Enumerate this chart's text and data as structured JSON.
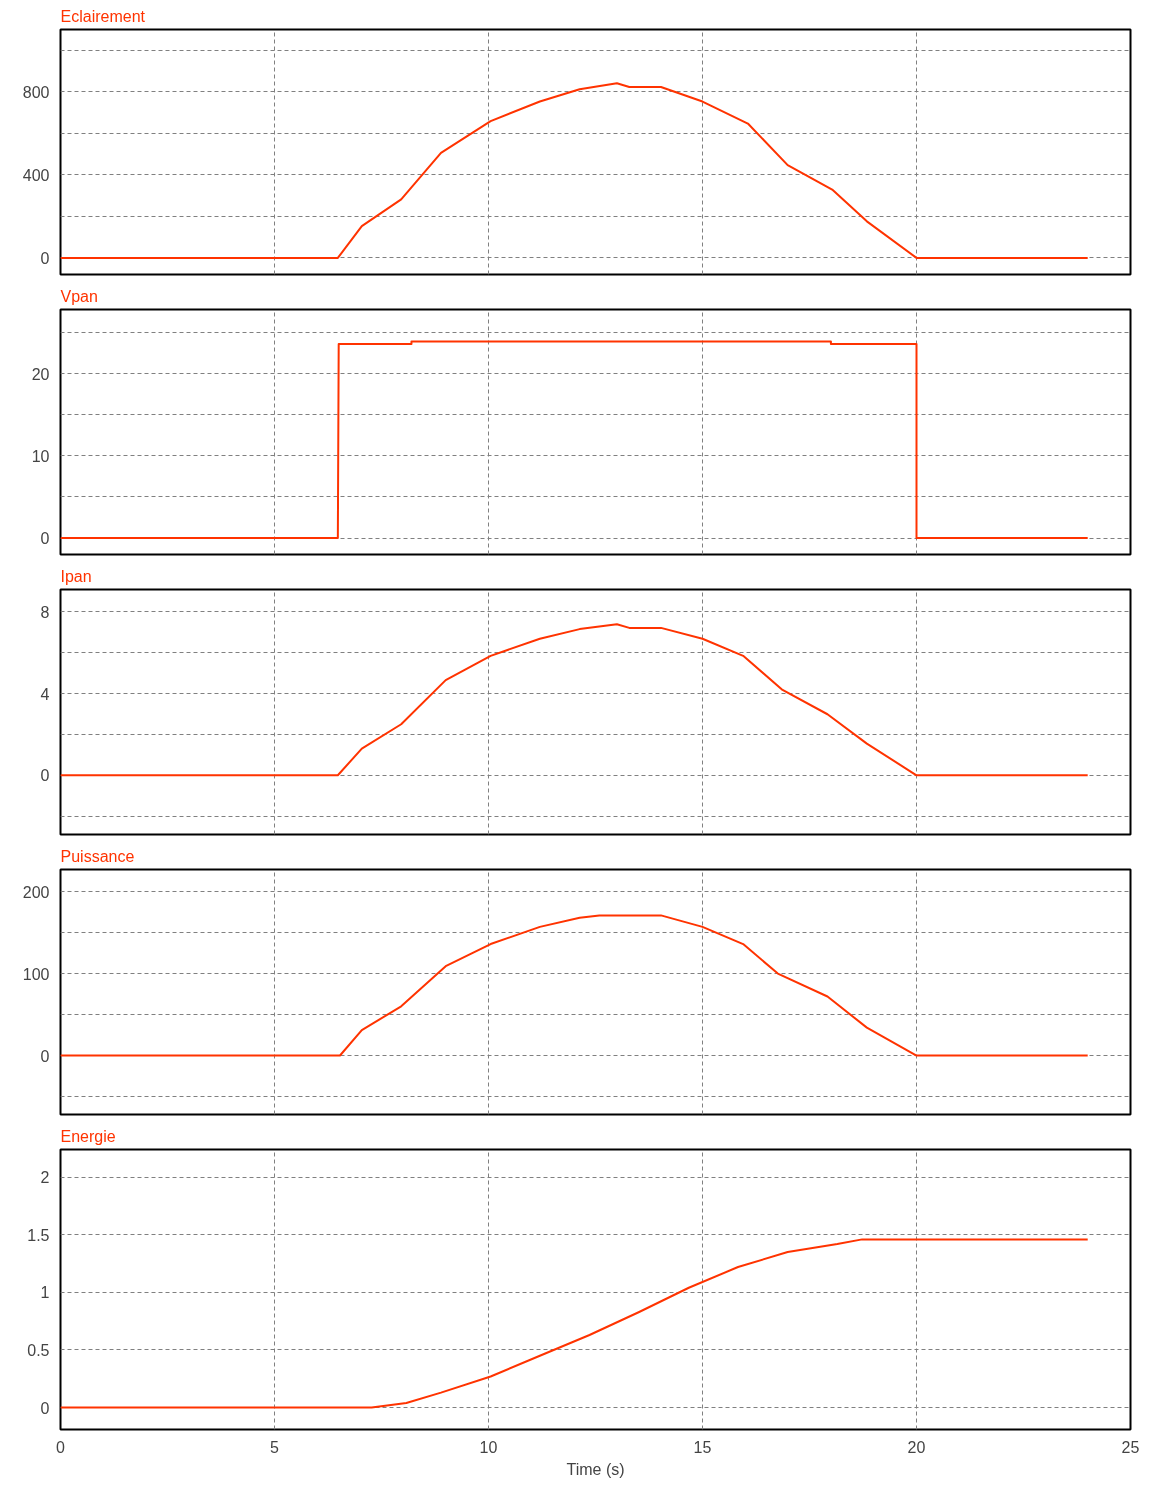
{
  "chart_data": [
    {
      "type": "line",
      "title": "Eclairement",
      "xlim": [
        0,
        25
      ],
      "xticks": [
        0,
        5,
        10,
        15,
        20,
        25
      ],
      "ylim": [
        -80,
        1100
      ],
      "yticks": [
        0,
        {
          "value": 200,
          "label": null
        },
        400,
        {
          "value": 600,
          "label": null
        },
        800,
        {
          "value": 1000,
          "label": null
        }
      ],
      "tick_labels": "y",
      "grid": true,
      "series": [
        {
          "color": "#ff3300",
          "x": [
            0,
            6.48,
            7.04,
            7.96,
            8.89,
            10.05,
            11.2,
            12.13,
            13.0,
            13.29,
            14.03,
            15.0,
            16.06,
            16.99,
            18.03,
            18.84,
            20.0,
            24
          ],
          "values": [
            0,
            0,
            153,
            282,
            506,
            659,
            753,
            812,
            841,
            823,
            823,
            753,
            647,
            447,
            329,
            176,
            0,
            0
          ]
        }
      ]
    },
    {
      "type": "line",
      "title": "Vpan",
      "xlim": [
        0,
        25
      ],
      "xticks": [
        0,
        5,
        10,
        15,
        20,
        25
      ],
      "ylim": [
        -2,
        27.8
      ],
      "yticks": [
        0,
        {
          "value": 5,
          "label": null
        },
        10,
        {
          "value": 15,
          "label": null
        },
        20,
        {
          "value": 25,
          "label": null
        }
      ],
      "tick_labels": "y",
      "grid": true,
      "series": [
        {
          "color": "#ff3300",
          "x": [
            0,
            6.48,
            6.5,
            8.2,
            8.2,
            18.0,
            18.0,
            20,
            20,
            24
          ],
          "values": [
            0,
            0,
            23.6,
            23.6,
            23.9,
            23.9,
            23.6,
            23.6,
            0,
            0
          ]
        }
      ]
    },
    {
      "type": "line",
      "title": "Ipan",
      "xlim": [
        0,
        25
      ],
      "xticks": [
        0,
        5,
        10,
        15,
        20,
        25
      ],
      "ylim": [
        -2.9,
        9.1
      ],
      "yticks": [
        {
          "value": -2,
          "label": null
        },
        0,
        {
          "value": 2,
          "label": null
        },
        4,
        {
          "value": 6,
          "label": null
        },
        8
      ],
      "tick_labels": "y",
      "grid": true,
      "series": [
        {
          "color": "#ff3300",
          "x": [
            0,
            6.48,
            7.04,
            7.96,
            9.0,
            10.05,
            11.2,
            12.13,
            13.0,
            13.29,
            14.03,
            15.0,
            15.95,
            16.87,
            17.92,
            18.84,
            20,
            24
          ],
          "values": [
            0,
            0,
            1.31,
            2.5,
            4.66,
            5.85,
            6.69,
            7.16,
            7.4,
            7.22,
            7.22,
            6.69,
            5.85,
            4.18,
            2.99,
            1.55,
            0,
            0
          ]
        }
      ]
    },
    {
      "type": "line",
      "title": "Puissance",
      "xlim": [
        0,
        25
      ],
      "xticks": [
        0,
        5,
        10,
        15,
        20,
        25
      ],
      "ylim": [
        -72,
        227
      ],
      "yticks": [
        {
          "value": -50,
          "label": null
        },
        0,
        {
          "value": 50,
          "label": null
        },
        100,
        {
          "value": 150,
          "label": null
        },
        200
      ],
      "tick_labels": "y",
      "grid": true,
      "series": [
        {
          "color": "#ff3300",
          "x": [
            0,
            6.53,
            7.04,
            7.96,
            9.0,
            10.05,
            11.2,
            12.13,
            12.59,
            14.03,
            15.0,
            15.95,
            16.76,
            17.92,
            18.84,
            20,
            24
          ],
          "values": [
            0,
            0,
            31,
            60,
            109,
            136,
            157,
            168,
            171,
            171,
            157,
            136,
            100,
            72,
            34,
            0,
            0
          ]
        }
      ]
    },
    {
      "type": "line",
      "title": "Energie",
      "xlabel": "Time (s)",
      "xlim": [
        0,
        25
      ],
      "xticks": [
        0,
        5,
        10,
        15,
        20,
        25
      ],
      "ylim": [
        -0.19,
        2.24
      ],
      "yticks": [
        0,
        0.5,
        1,
        1.5,
        2
      ],
      "grid": true,
      "series": [
        {
          "color": "#ff3300",
          "x": [
            0,
            7.27,
            8.08,
            8.89,
            10.05,
            11.2,
            12.36,
            13.52,
            14.68,
            15.83,
            16.99,
            18.15,
            18.73,
            24
          ],
          "values": [
            0,
            0,
            0.04,
            0.13,
            0.27,
            0.45,
            0.63,
            0.83,
            1.04,
            1.22,
            1.35,
            1.42,
            1.46,
            1.46
          ]
        }
      ]
    }
  ]
}
